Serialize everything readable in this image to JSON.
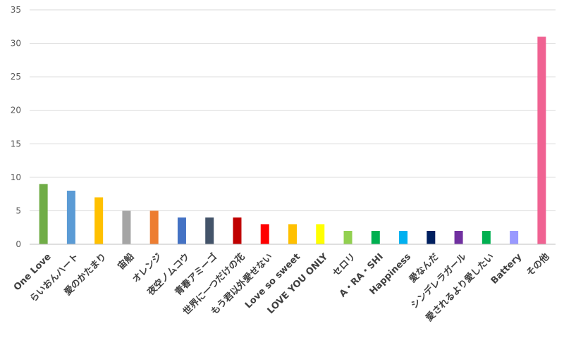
{
  "chart_data": {
    "type": "bar",
    "title": "",
    "xlabel": "",
    "ylabel": "",
    "ylim": [
      0,
      35
    ],
    "yticks": [
      0,
      5,
      10,
      15,
      20,
      25,
      30,
      35
    ],
    "grid": true,
    "legend": "none",
    "categories": [
      "One Love",
      "らいおんハート",
      "愛のかたまり",
      "宙船",
      "オレンジ",
      "夜空ノムコウ",
      "青春アミーゴ",
      "世界に一つだけの花",
      "もう君以外愛せない",
      "Love so sweet",
      "LOVE YOU ONLY",
      "セロリ",
      "A・RA・SHI",
      "Happiness",
      "愛なんだ",
      "シンデレラガール",
      "愛されるより愛したい",
      "Battery",
      "その他"
    ],
    "values": [
      9,
      8,
      7,
      5,
      5,
      4,
      4,
      4,
      3,
      3,
      3,
      2,
      2,
      2,
      2,
      2,
      2,
      2,
      31
    ],
    "colors": [
      "#70ad47",
      "#5b9bd5",
      "#ffc000",
      "#a5a5a5",
      "#ed7d31",
      "#4472c4",
      "#44546a",
      "#c00000",
      "#ff0000",
      "#ffc000",
      "#ffff00",
      "#92d050",
      "#00b050",
      "#00b0f0",
      "#002060",
      "#7030a0",
      "#00b050",
      "#9999ff",
      "#f06292"
    ]
  }
}
